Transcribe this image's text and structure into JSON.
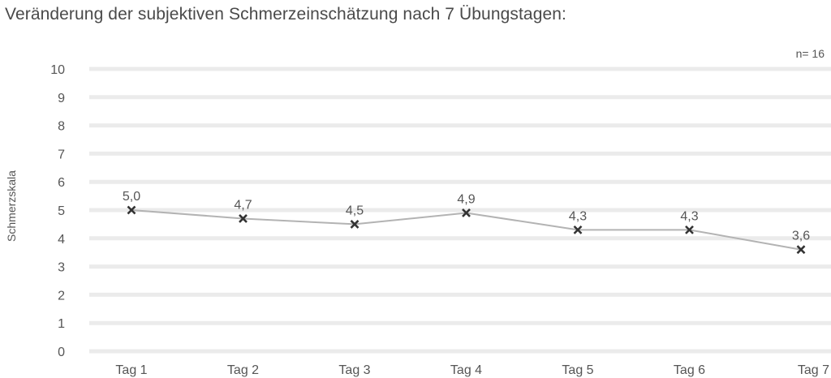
{
  "chart_data": {
    "type": "line",
    "title": "Veränderung der subjektiven Schmerzeinschätzung nach 7 Übungstagen:",
    "ylabel": "Schmerzskala",
    "xlabel": "",
    "annotation": "n= 16",
    "categories": [
      "Tag 1",
      "Tag 2",
      "Tag 3",
      "Tag 4",
      "Tag 5",
      "Tag 6",
      "Tag 7"
    ],
    "series": [
      {
        "name": "Schmerzskala",
        "values": [
          5.0,
          4.7,
          4.5,
          4.9,
          4.3,
          4.3,
          3.6
        ],
        "value_labels": [
          "5,0",
          "4,7",
          "4,5",
          "4,9",
          "4,3",
          "4,3",
          "3,6"
        ],
        "marker": "x",
        "color": "#b3b3b3",
        "marker_color": "#333333"
      }
    ],
    "ylim": [
      0,
      10
    ],
    "yticks": [
      "0",
      "1",
      "2",
      "3",
      "4",
      "5",
      "6",
      "7",
      "8",
      "9",
      "10"
    ],
    "grid": true,
    "grid_color": "#ebebeb"
  }
}
